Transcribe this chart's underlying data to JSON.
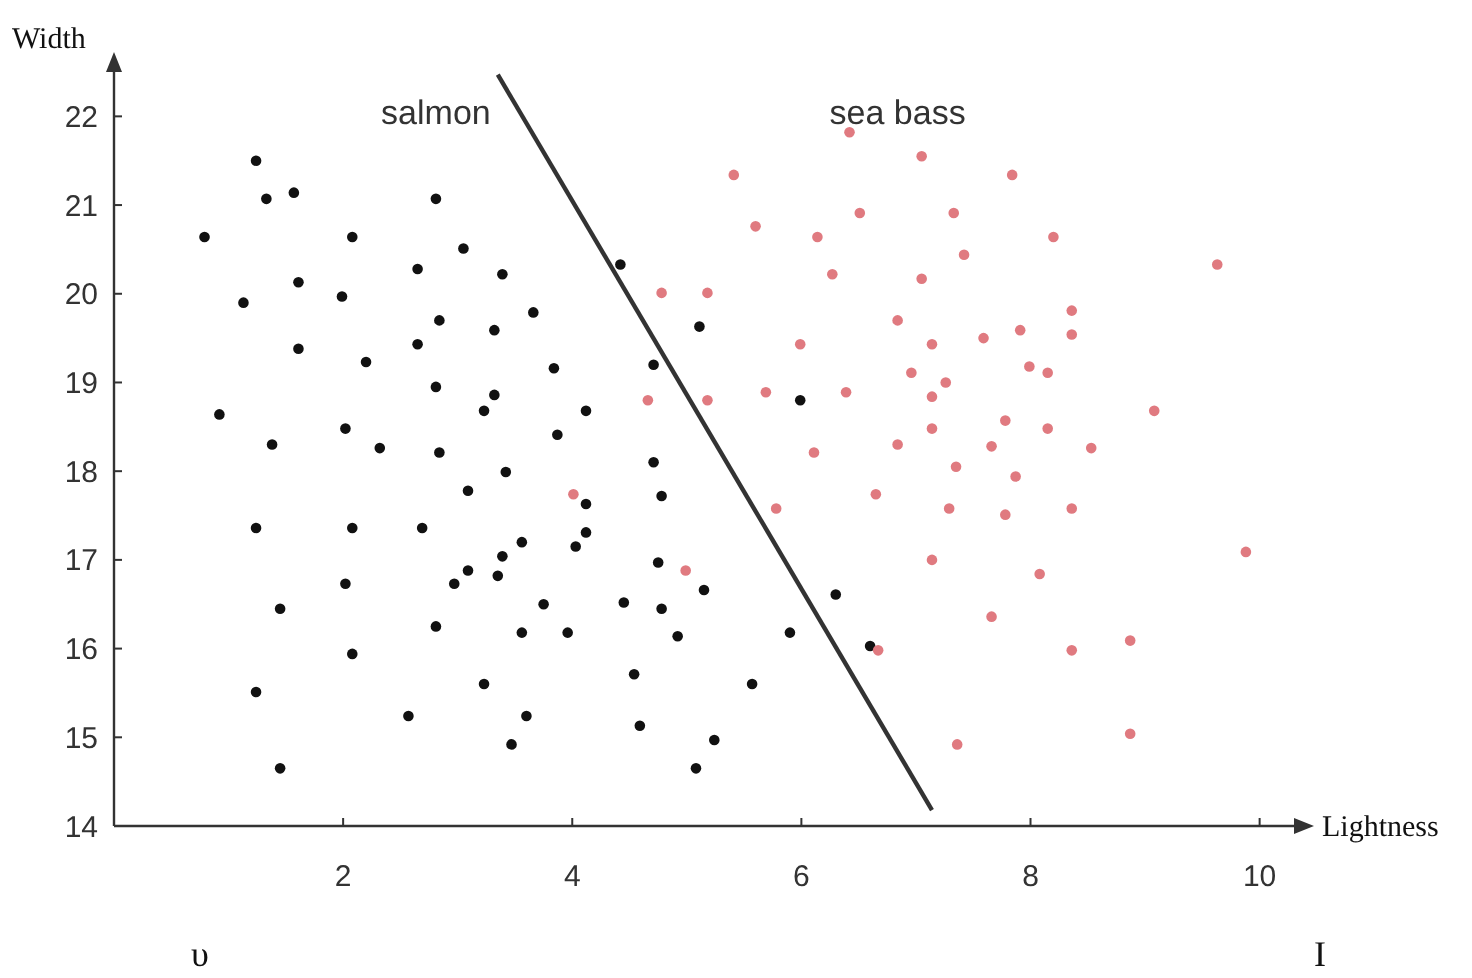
{
  "chart_data": {
    "type": "scatter",
    "xlabel": "Lightness",
    "ylabel": "Width",
    "xlim": [
      0,
      10.3
    ],
    "ylim": [
      14,
      22.5
    ],
    "xticks": [
      2,
      4,
      6,
      8,
      10
    ],
    "yticks": [
      14,
      15,
      16,
      17,
      18,
      19,
      20,
      21,
      22
    ],
    "marker": "circle",
    "grid": false,
    "annotations": [
      "υ",
      "I"
    ],
    "series": [
      {
        "name": "salmon",
        "color": "#111111",
        "x": [
          1.24,
          1.33,
          1.57,
          2.81,
          0.79,
          2.08,
          3.05,
          2.65,
          3.39,
          1.61,
          1.13,
          1.99,
          2.84,
          3.32,
          3.66,
          1.61,
          2.65,
          2.2,
          3.84,
          2.81,
          3.32,
          3.23,
          0.92,
          2.02,
          2.32,
          2.84,
          1.38,
          3.42,
          3.09,
          1.24,
          2.08,
          2.69,
          3.56,
          3.39,
          3.09,
          3.35,
          2.97,
          2.02,
          1.45,
          3.75,
          2.81,
          3.56,
          3.96,
          2.08,
          3.23,
          1.24,
          2.57,
          3.6,
          3.47,
          1.45,
          4.12,
          3.87,
          4.12,
          4.12,
          4.03,
          4.42,
          5.11,
          4.71,
          5.99,
          4.71,
          4.78,
          4.75,
          5.15,
          4.45,
          4.78,
          4.92,
          6.3,
          5.9,
          6.6,
          4.54,
          5.57,
          4.59,
          5.24,
          5.08
        ],
        "values": [
          21.5,
          21.07,
          21.14,
          21.07,
          20.64,
          20.64,
          20.51,
          20.28,
          20.22,
          20.13,
          19.9,
          19.97,
          19.7,
          19.59,
          19.79,
          19.38,
          19.43,
          19.23,
          19.16,
          18.95,
          18.86,
          18.68,
          18.64,
          18.48,
          18.26,
          18.21,
          18.3,
          17.99,
          17.78,
          17.36,
          17.36,
          17.36,
          17.2,
          17.04,
          16.88,
          16.82,
          16.73,
          16.73,
          16.45,
          16.5,
          16.25,
          16.18,
          16.18,
          15.94,
          15.6,
          15.51,
          15.24,
          15.24,
          14.92,
          14.65,
          18.68,
          18.41,
          17.63,
          17.31,
          17.15,
          20.33,
          19.63,
          19.2,
          18.8,
          18.1,
          17.72,
          16.97,
          16.66,
          16.52,
          16.45,
          16.14,
          16.61,
          16.18,
          16.03,
          15.71,
          15.6,
          15.13,
          14.97,
          14.65
        ]
      },
      {
        "name": "sea bass",
        "color": "#e07a80",
        "x": [
          5.41,
          6.42,
          7.05,
          5.6,
          6.14,
          6.51,
          7.33,
          7.42,
          6.27,
          7.05,
          4.78,
          5.18,
          6.84,
          5.99,
          7.14,
          7.59,
          6.96,
          7.26,
          7.14,
          5.69,
          6.39,
          4.66,
          5.18,
          7.14,
          6.84,
          6.11,
          7.66,
          7.35,
          6.65,
          5.78,
          7.29,
          7.14,
          4.99,
          7.66,
          6.67,
          7.36,
          7.84,
          8.2,
          9.63,
          8.36,
          7.91,
          8.36,
          7.99,
          8.15,
          9.08,
          7.78,
          8.15,
          8.53,
          7.87,
          7.78,
          8.36,
          9.88,
          8.08,
          8.36,
          8.87,
          8.87,
          4.01
        ],
        "values": [
          21.34,
          21.82,
          21.55,
          20.76,
          20.64,
          20.91,
          20.91,
          20.44,
          20.22,
          20.17,
          20.01,
          20.01,
          19.7,
          19.43,
          19.43,
          19.5,
          19.11,
          19.0,
          18.84,
          18.89,
          18.89,
          18.8,
          18.8,
          18.48,
          18.3,
          18.21,
          18.28,
          18.05,
          17.74,
          17.58,
          17.58,
          17.0,
          16.88,
          16.36,
          15.98,
          14.92,
          21.34,
          20.64,
          20.33,
          19.81,
          19.59,
          19.54,
          19.18,
          19.11,
          18.68,
          18.57,
          18.48,
          18.26,
          17.94,
          17.51,
          17.58,
          17.09,
          16.84,
          15.98,
          16.09,
          15.04,
          17.74
        ]
      },
      {
        "type": "line",
        "marker": "none",
        "color": "#333333",
        "x": [
          3.35,
          7.14
        ],
        "values": [
          22.47,
          14.18
        ]
      }
    ]
  }
}
